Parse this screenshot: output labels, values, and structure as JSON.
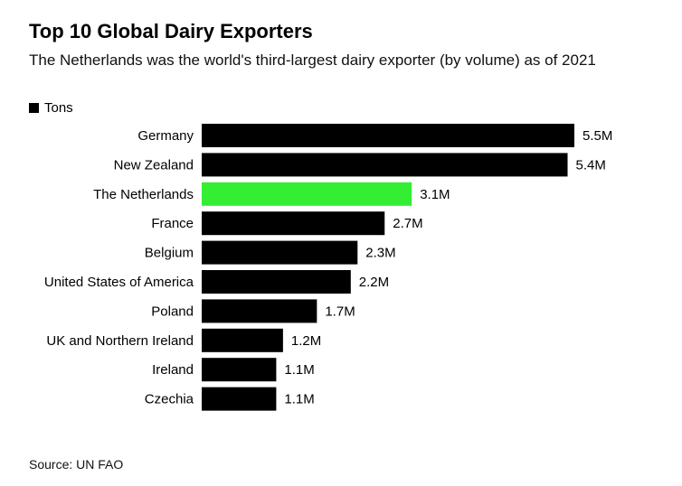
{
  "chart_data": {
    "type": "bar",
    "orientation": "horizontal",
    "title": "Top 10 Global Dairy Exporters",
    "subtitle": "The Netherlands was the world's third-largest dairy exporter (by volume) as of 2021",
    "legend": {
      "label": "Tons",
      "color": "#000000",
      "position": "top-left"
    },
    "categories": [
      "Germany",
      "New Zealand",
      "The Netherlands",
      "France",
      "Belgium",
      "United States of America",
      "Poland",
      "UK and Northern Ireland",
      "Ireland",
      "Czechia"
    ],
    "series": [
      {
        "name": "Tons",
        "values": [
          5500000,
          5400000,
          3100000,
          2700000,
          2300000,
          2200000,
          1700000,
          1200000,
          1100000,
          1100000
        ],
        "labels": [
          "5.5M",
          "5.4M",
          "3.1M",
          "2.7M",
          "2.3M",
          "2.2M",
          "1.7M",
          "1.2M",
          "1.1M",
          "1.1M"
        ]
      }
    ],
    "colors": {
      "default": "#000000",
      "highlight": "#33ee33"
    },
    "highlight_category": "The Netherlands",
    "xlim": [
      0,
      5500000
    ],
    "grid": false
  },
  "source": "Source: UN FAO"
}
